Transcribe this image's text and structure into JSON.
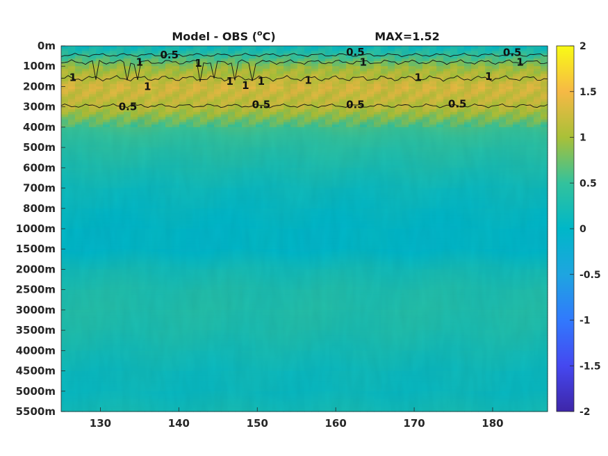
{
  "chart_data": {
    "type": "heatmap",
    "title": "Model - OBS (",
    "title_unit_sup": "o",
    "title_unit_suffix": "C)",
    "max_label": "MAX=1.52",
    "xlabel": "",
    "ylabel": "",
    "xlim": [
      125,
      187
    ],
    "x_ticks": [
      130,
      140,
      150,
      160,
      170,
      180
    ],
    "x_tick_labels": [
      "130",
      "140",
      "150",
      "160",
      "170",
      "180"
    ],
    "y_tick_labels": [
      "0m",
      "100m",
      "200m",
      "300m",
      "400m",
      "500m",
      "600m",
      "700m",
      "800m",
      "1000m",
      "1500m",
      "2000m",
      "2500m",
      "3000m",
      "3500m",
      "4000m",
      "4500m",
      "5000m",
      "5500m"
    ],
    "y_row_values": [
      0.15,
      0.95,
      1.3,
      1.1,
      0.55,
      0.38,
      0.25,
      0.12,
      0.05,
      0.0,
      0.0,
      0.2,
      0.3,
      0.32,
      0.28,
      0.2,
      0.12,
      0.1,
      0.2
    ],
    "colorbar": {
      "min": -2,
      "max": 2,
      "ticks": [
        2,
        1.5,
        1,
        0.5,
        0,
        -0.5,
        -1,
        -1.5,
        -2
      ],
      "tick_labels": [
        "2",
        "1.5",
        "1",
        "0.5",
        "0",
        "-0.5",
        "-1",
        "-1.5",
        "-2"
      ],
      "colormap": "parula"
    },
    "contours": [
      {
        "level": 0.5,
        "depth": "upper",
        "labels": [
          {
            "x": 138.8,
            "depth_idx": 0.45,
            "text": "0.5"
          },
          {
            "x": 162.5,
            "depth_idx": 0.3,
            "text": "0.5"
          },
          {
            "x": 182.5,
            "depth_idx": 0.32,
            "text": "0.5"
          }
        ]
      },
      {
        "level": 1,
        "depth": "upper",
        "labels": [
          {
            "x": 126.5,
            "depth_idx": 1.55,
            "text": "1"
          },
          {
            "x": 135.0,
            "depth_idx": 0.8,
            "text": "1"
          },
          {
            "x": 142.5,
            "depth_idx": 0.85,
            "text": "1"
          },
          {
            "x": 146.5,
            "depth_idx": 1.75,
            "text": "1"
          },
          {
            "x": 148.5,
            "depth_idx": 1.95,
            "text": "1"
          },
          {
            "x": 150.5,
            "depth_idx": 1.75,
            "text": "1"
          },
          {
            "x": 163.5,
            "depth_idx": 0.8,
            "text": "1"
          },
          {
            "x": 183.5,
            "depth_idx": 0.8,
            "text": "1"
          },
          {
            "x": 136.0,
            "depth_idx": 2.0,
            "text": "1"
          },
          {
            "x": 156.5,
            "depth_idx": 1.7,
            "text": "1"
          },
          {
            "x": 170.5,
            "depth_idx": 1.55,
            "text": "1"
          },
          {
            "x": 179.5,
            "depth_idx": 1.5,
            "text": "1"
          }
        ]
      },
      {
        "level": 0.5,
        "depth": "lower",
        "labels": [
          {
            "x": 133.5,
            "depth_idx": 3.0,
            "text": "0.5"
          },
          {
            "x": 150.5,
            "depth_idx": 2.9,
            "text": "0.5"
          },
          {
            "x": 162.5,
            "depth_idx": 2.9,
            "text": "0.5"
          },
          {
            "x": 175.5,
            "depth_idx": 2.85,
            "text": "0.5"
          }
        ]
      }
    ],
    "grid": false,
    "legend": "none"
  }
}
